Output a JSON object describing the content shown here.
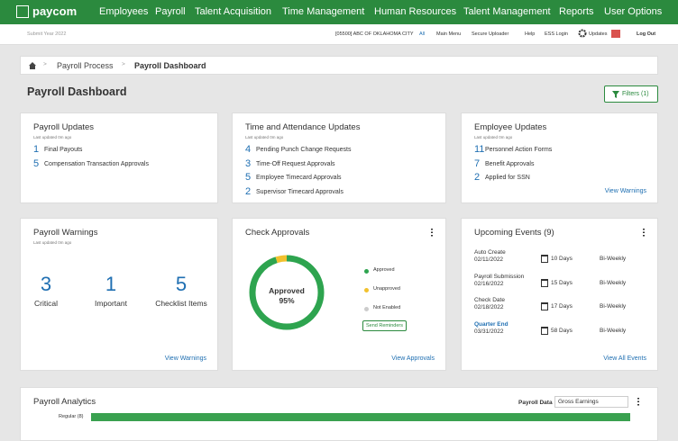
{
  "header": {
    "logo": "paycom",
    "nav": [
      "Employees",
      "Payroll",
      "Talent Acquisition",
      "Time Management",
      "Human Resources",
      "Talent Management",
      "Reports",
      "User Options"
    ],
    "sub_left": "Submit Year 2022",
    "company": "[05500] ABC OF OKLAHOMA CITY",
    "links": [
      "All",
      "Main Menu",
      "Secure Uploader",
      "Help",
      "ESS Login",
      "Updates",
      "Log Out"
    ]
  },
  "breadcrumb": [
    "Payroll Process",
    "Payroll Dashboard"
  ],
  "page": {
    "title": "Payroll Dashboard",
    "filters": "Filters (1)"
  },
  "cards": [
    {
      "kind": "list",
      "title": "Payroll Updates",
      "updated": "Last updated 0m ago",
      "items": [
        {
          "count": 1,
          "label": "Final Payouts"
        },
        {
          "count": 5,
          "label": "Compensation Transaction Approvals"
        }
      ]
    },
    {
      "kind": "list",
      "title": "Time and Attendance Updates",
      "updated": "Last updated 0m ago",
      "items": [
        {
          "count": 4,
          "label": "Pending Punch Change Requests"
        },
        {
          "count": 3,
          "label": "Time-Off Request Approvals"
        },
        {
          "count": 5,
          "label": "Employee Timecard Approvals"
        },
        {
          "count": 2,
          "label": "Supervisor Timecard Approvals"
        }
      ]
    },
    {
      "kind": "list",
      "title": "Employee Updates",
      "updated": "Last updated 0m ago",
      "items": [
        {
          "count": 11,
          "label": "Personnel Action Forms"
        },
        {
          "count": 7,
          "label": "Benefit Approvals"
        },
        {
          "count": 2,
          "label": "Applied for SSN"
        }
      ],
      "link": "View Warnings"
    },
    {
      "kind": "warnings",
      "title": "Payroll Warnings",
      "updated": "Last updated 0m ago",
      "items": [
        {
          "count": 3,
          "label": "Critical"
        },
        {
          "count": 1,
          "label": "Important"
        },
        {
          "count": 5,
          "label": "Checklist Items"
        }
      ],
      "link": "View Warnings"
    },
    {
      "kind": "donut",
      "title": "Check Approvals",
      "segments": [
        {
          "name": "Approved",
          "color": "#2ea44f",
          "value": 95
        },
        {
          "name": "Unapproved",
          "color": "#f2c12e",
          "value": 5
        },
        {
          "name": "Not Enabled",
          "color": "#cccccc",
          "value": 0
        }
      ],
      "center_label": "Approved",
      "center_value_label": "95%",
      "button": "Send Reminders",
      "link": "View Approvals"
    },
    {
      "kind": "events",
      "title": "Upcoming Events (9)",
      "events": [
        {
          "name": "Auto Create",
          "date": "02/11/2022",
          "days": "10 Days",
          "frequency": "Bi-Weekly"
        },
        {
          "name": "Payroll Submission",
          "date": "02/16/2022",
          "days": "15 Days",
          "frequency": "Bi-Weekly"
        },
        {
          "name": "Check Date",
          "date": "02/18/2022",
          "days": "17 Days",
          "frequency": "Bi-Weekly"
        },
        {
          "name": "Quarter End",
          "date": "03/31/2022",
          "days": "58 Days",
          "frequency": "Bi-Weekly"
        }
      ],
      "link": "View All Events"
    }
  ],
  "analytics": {
    "title": "Payroll Analytics",
    "data_label": "Payroll Data",
    "select": "Gross Earnings",
    "row": "Regular (8)"
  }
}
